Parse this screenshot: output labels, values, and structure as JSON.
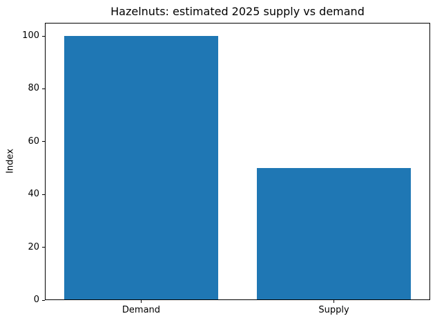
{
  "chart_data": {
    "type": "bar",
    "title": "Hazelnuts: estimated 2025 supply vs demand",
    "categories": [
      "Demand",
      "Supply"
    ],
    "values": [
      100,
      50
    ],
    "xlabel": "",
    "ylabel": "Index",
    "ylim": [
      0,
      105
    ],
    "yticks": [
      0,
      20,
      40,
      60,
      80,
      100
    ],
    "bar_color": "#1f77b4",
    "bar_width_fraction": 0.8,
    "grid": false,
    "legend_position": "none",
    "background_color": "#ffffff",
    "axis_color": "#000000"
  }
}
